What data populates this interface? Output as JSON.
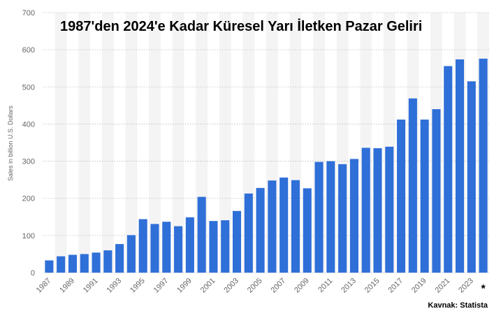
{
  "chart_data": {
    "type": "bar",
    "title": "1987'den 2024'e Kadar Küresel Yarı İletken Pazar Geliri",
    "ylabel": "Sales in billion U.S. Dollars",
    "xlabel": "",
    "ylim": [
      0,
      700
    ],
    "yticks": [
      0,
      100,
      200,
      300,
      400,
      500,
      600,
      700
    ],
    "grid": true,
    "categories": [
      "1987",
      "1988",
      "1989",
      "1990",
      "1991",
      "1992",
      "1993",
      "1994",
      "1995",
      "1996",
      "1997",
      "1998",
      "1999",
      "2000",
      "2001",
      "2002",
      "2003",
      "2004",
      "2005",
      "2006",
      "2007",
      "2008",
      "2009",
      "2010",
      "2011",
      "2012",
      "2013",
      "2014",
      "2015",
      "2016",
      "2017",
      "2018",
      "2019",
      "2020",
      "2021",
      "2022",
      "2023",
      "2024"
    ],
    "tick_labels": [
      "1987",
      "",
      "1989",
      "",
      "1991",
      "",
      "1993",
      "",
      "1995",
      "",
      "1997",
      "",
      "1999",
      "",
      "2001",
      "",
      "2003",
      "",
      "2005",
      "",
      "2007",
      "",
      "2009",
      "",
      "2011",
      "",
      "2013",
      "",
      "2015",
      "",
      "2017",
      "",
      "2019",
      "",
      "2021",
      "",
      "2023",
      "*"
    ],
    "values": [
      33,
      44,
      48,
      50,
      54,
      60,
      77,
      101,
      144,
      131,
      137,
      125,
      149,
      204,
      139,
      141,
      166,
      213,
      228,
      248,
      256,
      249,
      227,
      298,
      300,
      292,
      306,
      336,
      335,
      339,
      412,
      469,
      412,
      440,
      556,
      574,
      515,
      576
    ],
    "bar_color": "#2f6fd8",
    "source": "Kavnak: Statista"
  }
}
